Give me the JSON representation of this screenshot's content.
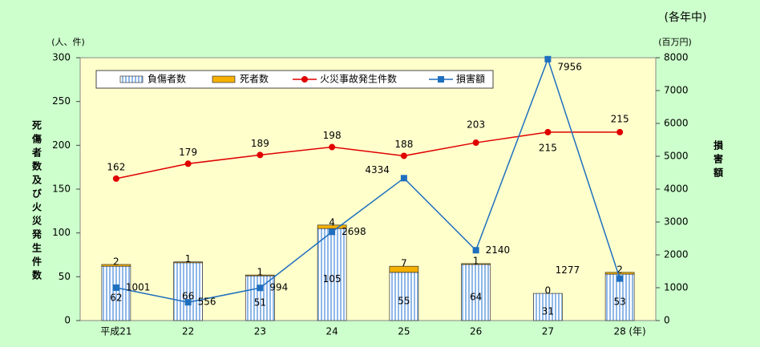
{
  "chart_data": {
    "type": "bar-line",
    "note": "(各年中)",
    "y_unit": "(人、件)",
    "y2_unit": "(百万円)",
    "ylabel": "死傷者数及び火災発生件数",
    "y2label": "損害額",
    "x_unit": "(年)",
    "categories": [
      "平成21",
      "22",
      "23",
      "24",
      "25",
      "26",
      "27",
      "28"
    ],
    "ylim": [
      0,
      300
    ],
    "yticks": [
      0,
      50,
      100,
      150,
      200,
      250,
      300
    ],
    "y2lim": [
      0,
      8000
    ],
    "y2ticks": [
      0,
      1000,
      2000,
      3000,
      4000,
      5000,
      6000,
      7000,
      8000
    ],
    "series": [
      {
        "name": "負傷者数",
        "kind": "bar",
        "color": "#8fb8e8",
        "values": [
          62,
          66,
          51,
          105,
          55,
          64,
          31,
          53
        ]
      },
      {
        "name": "死者数",
        "kind": "bar",
        "color": "#f5b000",
        "values": [
          2,
          1,
          1,
          4,
          7,
          1,
          0,
          2
        ]
      },
      {
        "name": "火災事故発生件数",
        "kind": "line",
        "color": "#e00000",
        "values": [
          162,
          179,
          189,
          198,
          188,
          203,
          215,
          215
        ]
      },
      {
        "name": "損害額",
        "kind": "line",
        "axis": "y2",
        "color": "#1f6fbf",
        "values": [
          1001,
          556,
          994,
          2698,
          4334,
          2140,
          7956,
          1277
        ]
      }
    ]
  }
}
